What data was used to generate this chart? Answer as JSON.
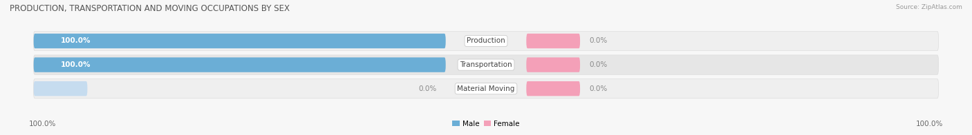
{
  "title": "PRODUCTION, TRANSPORTATION AND MOVING OCCUPATIONS BY SEX",
  "source": "Source: ZipAtlas.com",
  "categories": [
    "Production",
    "Transportation",
    "Material Moving"
  ],
  "male_values": [
    100.0,
    100.0,
    0.0
  ],
  "female_values": [
    0.0,
    0.0,
    0.0
  ],
  "male_color": "#6baed6",
  "female_color": "#f4a0b8",
  "male_light_color": "#c6dcef",
  "female_light_color": "#fce0e8",
  "row_bg_even": "#efefef",
  "row_bg_odd": "#e6e6e6",
  "background_color": "#f7f7f7",
  "title_fontsize": 8.5,
  "label_fontsize": 7.5,
  "value_fontsize": 7.5,
  "tick_fontsize": 7.5,
  "source_fontsize": 6.5
}
